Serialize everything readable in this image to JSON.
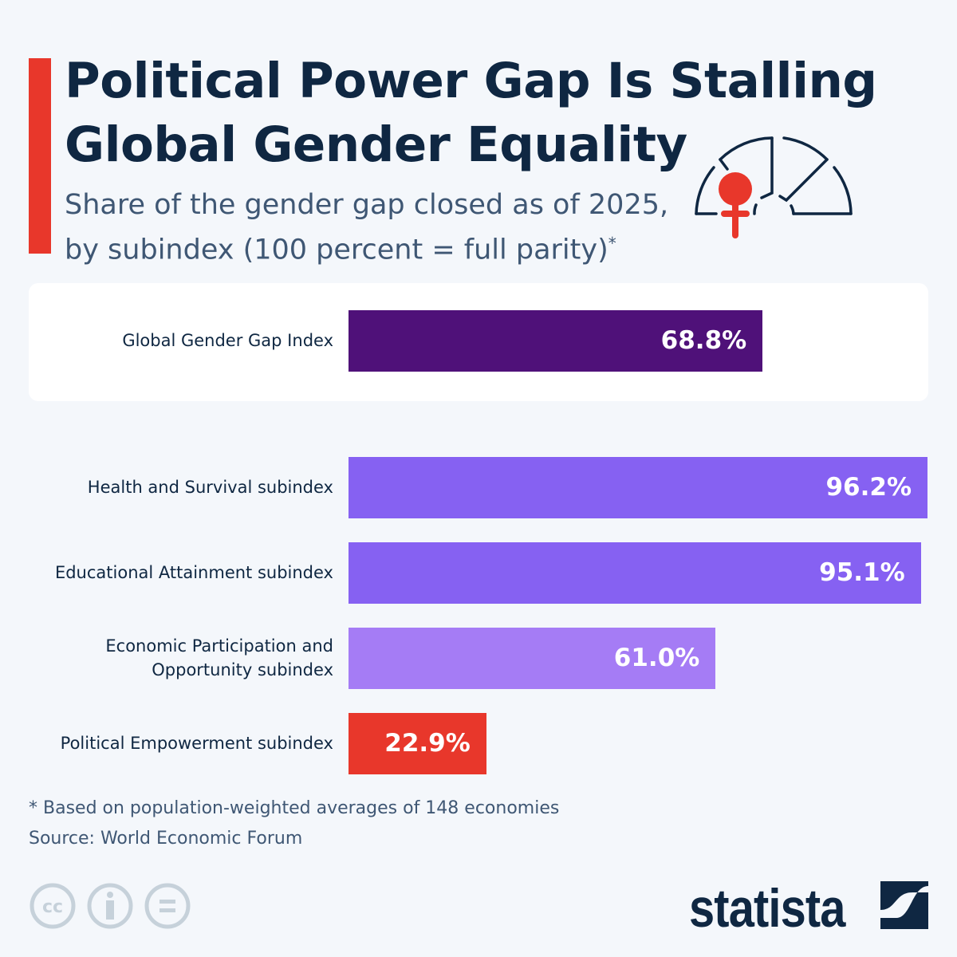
{
  "header": {
    "title_line1": "Political Power Gap Is Stalling",
    "title_line2": "Global Gender Equality",
    "subtitle_line1": "Share of the gender gap closed as of 2025,",
    "subtitle_line2": "by subindex (100 percent = full parity)",
    "subtitle_marker": "*"
  },
  "chart_data": {
    "type": "bar",
    "orientation": "horizontal",
    "categories": [
      "Global Gender Gap Index",
      "Health and Survival subindex",
      "Educational Attainment subindex",
      "Economic Participation and Opportunity subindex",
      "Political Empowerment subindex"
    ],
    "values": [
      68.8,
      96.2,
      95.1,
      61.0,
      22.9
    ],
    "value_labels": [
      "68.8%",
      "96.2%",
      "95.1%",
      "61.0%",
      "22.9%"
    ],
    "label_lines": [
      [
        "Global Gender Gap Index"
      ],
      [
        "Health and Survival subindex"
      ],
      [
        "Educational Attainment subindex"
      ],
      [
        "Economic Participation and",
        "Opportunity subindex"
      ],
      [
        "Political Empowerment subindex"
      ]
    ],
    "colors": [
      "#4f1179",
      "#8661f2",
      "#8661f2",
      "#a57cf5",
      "#e8372b"
    ],
    "unit": "percent",
    "grid": false
  },
  "footer": {
    "note": "* Based on population-weighted averages of 148 economies",
    "source": "Source: World Economic Forum",
    "brand": "statista"
  },
  "colors": {
    "accent": "#e8372b",
    "text": "#0f2742",
    "background": "#f4f7fb"
  },
  "icons": [
    "parliament-gauge-female-icon",
    "cc-icon",
    "attribution-icon",
    "no-derivatives-icon",
    "statista-logo"
  ]
}
